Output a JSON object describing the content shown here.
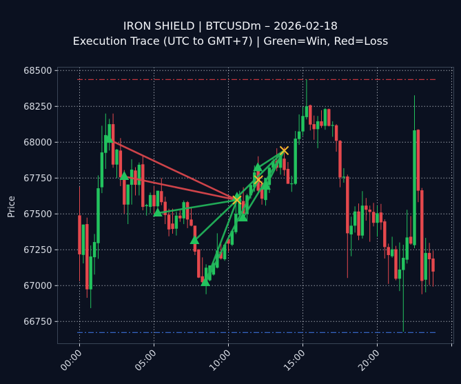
{
  "header": {
    "title_line1": "IRON SHIELD | BTCUSDm – 2026-02-18",
    "title_line2": "Execution Trace (UTC to GMT+7) | Green=Win, Red=Loss"
  },
  "colors": {
    "background": "#0b1120",
    "axes_border": "#3a4556",
    "grid": "#c8ccd4",
    "bull": "#22c35e",
    "bear": "#e5484d",
    "win_line": "#22b35a",
    "loss_line": "#d9464c",
    "exit_marker": "#f5b82e",
    "entry_marker": "#22c35e",
    "upper_level": "#c0343c",
    "lower_level": "#3a6fd8"
  },
  "chart_data": {
    "type": "candlestick",
    "title": "IRON SHIELD | BTCUSDm – 2026-02-18\nExecution Trace (UTC to GMT+7) | Green=Win, Red=Loss",
    "xlabel": "",
    "ylabel": "Price",
    "ylim": [
      66600,
      68530
    ],
    "yticks": [
      68500,
      68250,
      68000,
      67750,
      67500,
      67250,
      67000,
      66750
    ],
    "xticks": [
      "00:00",
      "05:00",
      "10:00",
      "15:00",
      "20:00",
      ""
    ],
    "xtick_hours": [
      0,
      5,
      10,
      15,
      20,
      25
    ],
    "grid": true,
    "interval_minutes": 15,
    "levels": [
      {
        "name": "upper",
        "price": 68437,
        "style": "dashdot",
        "color": "#c0343c"
      },
      {
        "name": "lower",
        "price": 66673,
        "style": "dashdot",
        "color": "#3a6fd8"
      }
    ],
    "candles_ohlc": [
      [
        67490,
        67689,
        67030,
        67218
      ],
      [
        67214,
        67426,
        67155,
        67426
      ],
      [
        67429,
        67474,
        66915,
        66974
      ],
      [
        66974,
        67280,
        66843,
        67203
      ],
      [
        67198,
        67360,
        67077,
        67304
      ],
      [
        67296,
        67769,
        67187,
        67679
      ],
      [
        67686,
        68115,
        67645,
        67929
      ],
      [
        67926,
        68200,
        67814,
        68050
      ],
      [
        68003,
        68163,
        67942,
        68126
      ],
      [
        68126,
        68200,
        67822,
        67844
      ],
      [
        67844,
        67953,
        67750,
        67949
      ],
      [
        67942,
        68029,
        67694,
        67756
      ],
      [
        67758,
        67806,
        67501,
        67565
      ],
      [
        67565,
        67705,
        67429,
        67705
      ],
      [
        67703,
        67881,
        67565,
        67809
      ],
      [
        67803,
        67826,
        67629,
        67703
      ],
      [
        67702,
        67859,
        67629,
        67843
      ],
      [
        67846,
        67902,
        67525,
        67549
      ],
      [
        67554,
        67570,
        67488,
        67562
      ],
      [
        67549,
        67649,
        67505,
        67632
      ],
      [
        67632,
        67694,
        67501,
        67553
      ],
      [
        67553,
        67662,
        67539,
        67662
      ],
      [
        67659,
        67750,
        67561,
        67582
      ],
      [
        67585,
        67620,
        67429,
        67492
      ],
      [
        67495,
        67536,
        67344,
        67392
      ],
      [
        67433,
        67537,
        67362,
        67395
      ],
      [
        67397,
        67517,
        67349,
        67488
      ],
      [
        67488,
        67525,
        67445,
        67469
      ],
      [
        67469,
        67594,
        67429,
        67582
      ],
      [
        67582,
        67590,
        67401,
        67461
      ],
      [
        67461,
        67549,
        67413,
        67418
      ],
      [
        67418,
        67418,
        67213,
        67237
      ],
      [
        67253,
        67253,
        67053,
        67056
      ],
      [
        67065,
        67197,
        67012,
        67024
      ],
      [
        67021,
        67149,
        66940,
        67125
      ],
      [
        67037,
        67141,
        67030,
        67141
      ],
      [
        67077,
        67165,
        67070,
        67157
      ],
      [
        67125,
        67365,
        67120,
        67245
      ],
      [
        67237,
        67293,
        67181,
        67189
      ],
      [
        67184,
        67290,
        67173,
        67285
      ],
      [
        67325,
        67340,
        67237,
        67293
      ],
      [
        67285,
        67390,
        67275,
        67381
      ],
      [
        67373,
        67582,
        67360,
        67501
      ],
      [
        67493,
        67662,
        67480,
        67622
      ],
      [
        67590,
        67686,
        67469,
        67501
      ],
      [
        67501,
        67640,
        67453,
        67630
      ],
      [
        67630,
        67710,
        67606,
        67702
      ],
      [
        67686,
        67838,
        67654,
        67790
      ],
      [
        67830,
        67902,
        67646,
        67662
      ],
      [
        67710,
        67730,
        67565,
        67606
      ],
      [
        67597,
        67750,
        67558,
        67750
      ],
      [
        67702,
        67830,
        67646,
        67822
      ],
      [
        67822,
        67886,
        67810,
        67870
      ],
      [
        67870,
        67958,
        67798,
        67822
      ],
      [
        67822,
        67925,
        67774,
        67918
      ],
      [
        67886,
        67966,
        67766,
        67806
      ],
      [
        67814,
        67862,
        67710,
        67710
      ],
      [
        67710,
        67766,
        67654,
        67713
      ],
      [
        67710,
        68078,
        67702,
        68025
      ],
      [
        68022,
        68194,
        67982,
        68075
      ],
      [
        68075,
        68247,
        68046,
        68183
      ],
      [
        68175,
        68439,
        68159,
        68251
      ],
      [
        68258,
        68262,
        68082,
        68123
      ],
      [
        68126,
        68186,
        68017,
        68091
      ],
      [
        68091,
        68183,
        67958,
        68146
      ],
      [
        68146,
        68223,
        68100,
        68114
      ],
      [
        68114,
        68239,
        68087,
        68231
      ],
      [
        68231,
        68235,
        68110,
        68114
      ],
      [
        68118,
        68146,
        68038,
        68120
      ],
      [
        68118,
        68126,
        67934,
        68010
      ],
      [
        68010,
        68015,
        67686,
        67755
      ],
      [
        67758,
        67819,
        67718,
        67760
      ],
      [
        67761,
        67774,
        67053,
        67365
      ],
      [
        67357,
        67481,
        67205,
        67418
      ],
      [
        67418,
        67553,
        67370,
        67517
      ],
      [
        67517,
        67573,
        67317,
        67349
      ],
      [
        67349,
        67659,
        67328,
        67558
      ],
      [
        67558,
        67611,
        67453,
        67529
      ],
      [
        67530,
        67558,
        67306,
        67514
      ],
      [
        67514,
        67577,
        67413,
        67438
      ],
      [
        67438,
        67558,
        67341,
        67505
      ],
      [
        67510,
        67570,
        67389,
        67441
      ],
      [
        67448,
        67462,
        67189,
        67269
      ],
      [
        67269,
        67293,
        67012,
        67213
      ],
      [
        67205,
        67341,
        67195,
        67253
      ],
      [
        67253,
        67277,
        67037,
        67048
      ],
      [
        67048,
        67301,
        66962,
        67112
      ],
      [
        67109,
        67285,
        66679,
        67194
      ],
      [
        67181,
        67529,
        67154,
        67336
      ],
      [
        67341,
        67485,
        67285,
        67293
      ],
      [
        67282,
        68327,
        67261,
        68083
      ],
      [
        68087,
        68091,
        67582,
        67662
      ],
      [
        67665,
        67681,
        66940,
        67033
      ],
      [
        67041,
        67333,
        66953,
        67228
      ],
      [
        67228,
        67298,
        67005,
        67184
      ],
      [
        67189,
        67245,
        66993,
        67098
      ]
    ],
    "trades": [
      {
        "entry_index": 7.8,
        "entry_price": 68020,
        "exit_index": 42.3,
        "exit_price": 67597,
        "result": "loss"
      },
      {
        "entry_index": 12.0,
        "entry_price": 67761,
        "exit_index": 42.3,
        "exit_price": 67597,
        "result": "loss"
      },
      {
        "entry_index": 21.0,
        "entry_price": 67506,
        "exit_index": 42.3,
        "exit_price": 67597,
        "result": "win"
      },
      {
        "entry_index": 30.9,
        "entry_price": 67314,
        "exit_index": 42.3,
        "exit_price": 67597,
        "result": "win"
      },
      {
        "entry_index": 33.8,
        "entry_price": 67021,
        "exit_index": 42.3,
        "exit_price": 67597,
        "result": "win"
      },
      {
        "entry_index": 33.8,
        "entry_price": 67021,
        "exit_index": 48.1,
        "exit_price": 67738,
        "result": "win"
      },
      {
        "entry_index": 42.3,
        "entry_price": 67616,
        "exit_index": 55.0,
        "exit_price": 67942,
        "result": "win"
      },
      {
        "entry_index": 43.9,
        "entry_price": 67472,
        "exit_index": 55.0,
        "exit_price": 67942,
        "result": "win"
      },
      {
        "entry_index": 47.9,
        "entry_price": 67822,
        "exit_index": 55.0,
        "exit_price": 67942,
        "result": "win"
      },
      {
        "entry_index": 50.1,
        "entry_price": 67693,
        "exit_index": 55.0,
        "exit_price": 67942,
        "result": "win"
      }
    ],
    "legend": []
  }
}
